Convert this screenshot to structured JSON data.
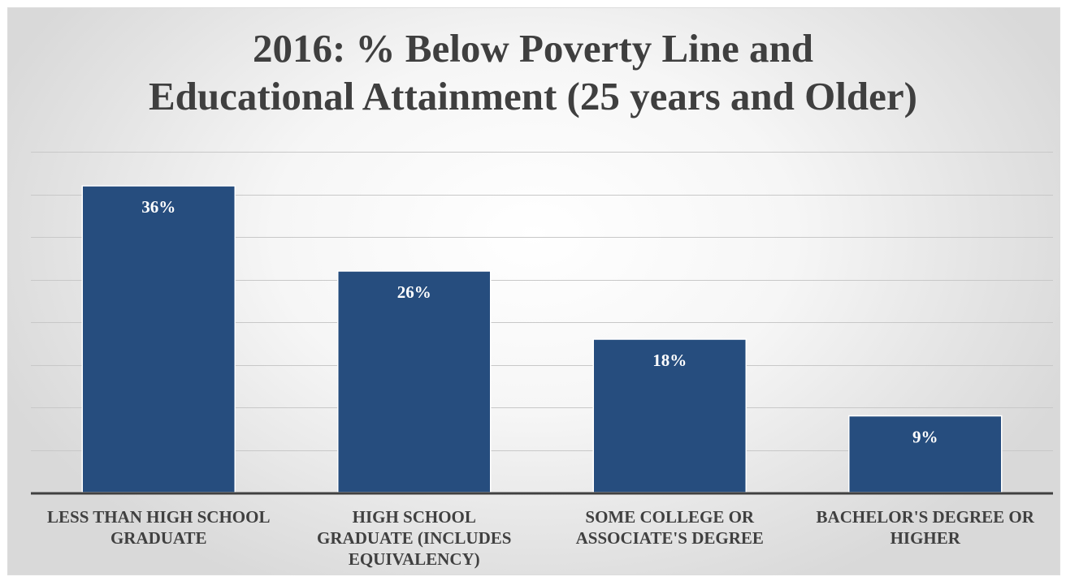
{
  "chart_data": {
    "type": "bar",
    "title_lines": [
      "2016: % Below Poverty Line and",
      "Educational Attainment (25 years and Older)"
    ],
    "categories": [
      [
        "LESS THAN HIGH SCHOOL",
        "GRADUATE"
      ],
      [
        "HIGH SCHOOL",
        "GRADUATE (INCLUDES",
        "EQUIVALENCY)"
      ],
      [
        "SOME COLLEGE OR",
        "ASSOCIATE'S DEGREE"
      ],
      [
        "BACHELOR'S DEGREE OR",
        "HIGHER"
      ]
    ],
    "values": [
      36,
      26,
      18,
      9
    ],
    "data_labels": [
      "36%",
      "26%",
      "18%",
      "9%"
    ],
    "ylim": [
      0,
      40
    ],
    "y_gridlines": [
      5,
      10,
      15,
      20,
      25,
      30,
      35,
      40
    ],
    "y_axis_visible": false,
    "grid": true,
    "legend": "none",
    "colors": {
      "bar": "#264d7e",
      "bar_edge": "#ffffff",
      "gridline": "#c8c8c8",
      "baseline": "#404040",
      "data_label": "#ffffff",
      "text": "#404040"
    }
  }
}
